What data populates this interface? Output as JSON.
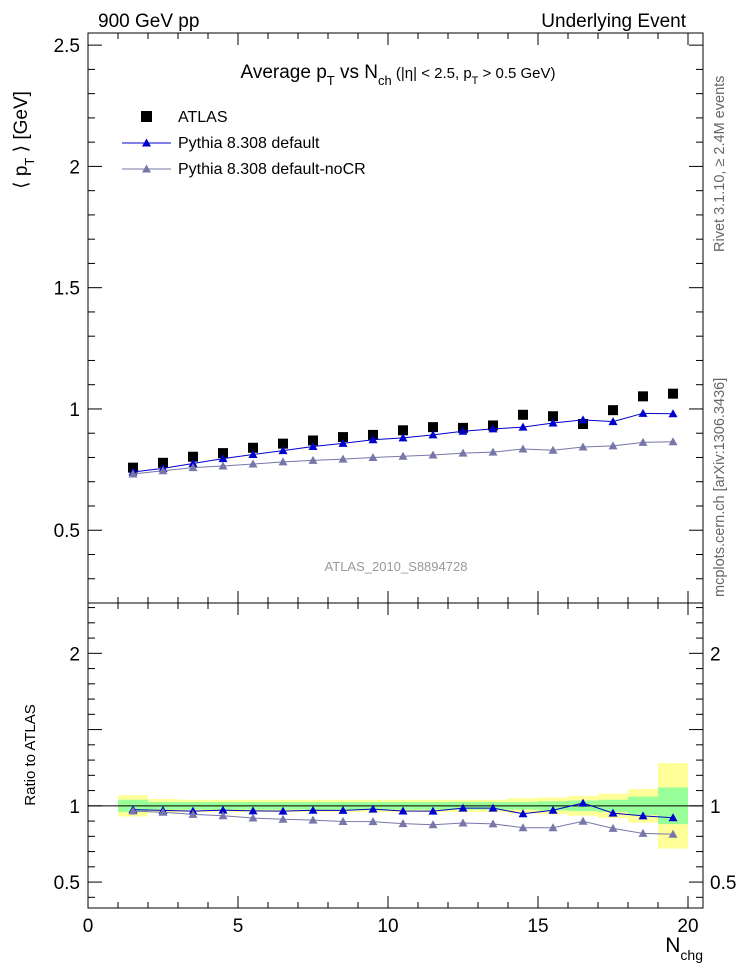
{
  "header": {
    "left": "900 GeV pp",
    "right": "Underlying Event"
  },
  "side_labels": {
    "rivet": "Rivet 3.1.10, ≥ 2.4M events",
    "mcplots": "mcplots.cern.ch [arXiv:1306.3436]"
  },
  "chart_data": [
    {
      "type": "scatter",
      "title_parts": {
        "a": "Average p",
        "a_sub": "T",
        "b": " vs N",
        "b_sub": "ch",
        "c": " (|η| < 2.5, p",
        "c_sub": "T",
        "d": " > 0.5 GeV)"
      },
      "ylabel": "⟨ p_T ⟩ [GeV]",
      "ylabel_parts": {
        "a": "⟨ p",
        "sub": "T",
        "b": " ⟩ [GeV]"
      },
      "watermark": "ATLAS_2010_S8894728",
      "xlim": [
        0,
        20.5
      ],
      "ylim": [
        0.2,
        2.55
      ],
      "yticks": [
        {
          "v": 0.5,
          "label": "0.5"
        },
        {
          "v": 1,
          "label": "1"
        },
        {
          "v": 1.5,
          "label": "1.5"
        },
        {
          "v": 2,
          "label": "2"
        },
        {
          "v": 2.5,
          "label": "2.5"
        }
      ],
      "x": [
        1.5,
        2.5,
        3.5,
        4.5,
        5.5,
        6.5,
        7.5,
        8.5,
        9.5,
        10.5,
        11.5,
        12.5,
        13.5,
        14.5,
        15.5,
        16.5,
        17.5,
        18.5,
        19.5
      ],
      "series": [
        {
          "name": "ATLAS",
          "marker": "square",
          "color": "#000000",
          "values": [
            0.758,
            0.778,
            0.803,
            0.818,
            0.84,
            0.857,
            0.87,
            0.884,
            0.893,
            0.912,
            0.925,
            0.922,
            0.932,
            0.976,
            0.97,
            0.938,
            0.995,
            1.052,
            1.063
          ]
        },
        {
          "name": "Pythia 8.308 default",
          "marker": "triangle",
          "color": "#0000cc",
          "values": [
            0.74,
            0.755,
            0.775,
            0.795,
            0.812,
            0.828,
            0.845,
            0.858,
            0.873,
            0.881,
            0.893,
            0.908,
            0.918,
            0.925,
            0.942,
            0.955,
            0.948,
            0.982,
            0.98
          ]
        },
        {
          "name": "Pythia 8.308 default-noCR",
          "marker": "triangle",
          "color": "#7777aa",
          "values": [
            0.732,
            0.745,
            0.758,
            0.765,
            0.773,
            0.782,
            0.788,
            0.793,
            0.8,
            0.805,
            0.81,
            0.818,
            0.822,
            0.835,
            0.83,
            0.843,
            0.848,
            0.862,
            0.865
          ]
        }
      ]
    },
    {
      "type": "scatter",
      "ylabel": "Ratio to ATLAS",
      "xlabel": "N_chg",
      "xlabel_parts": {
        "a": "N",
        "sub": "chg"
      },
      "xlim": [
        0,
        20.5
      ],
      "ylim": [
        0.33,
        2.33
      ],
      "xticks": [
        {
          "v": 0,
          "label": "0"
        },
        {
          "v": 5,
          "label": "5"
        },
        {
          "v": 10,
          "label": "10"
        },
        {
          "v": 15,
          "label": "15"
        },
        {
          "v": 20,
          "label": "20"
        }
      ],
      "yticks": [
        {
          "v": 0.5,
          "label": "0.5"
        },
        {
          "v": 1,
          "label": "1"
        },
        {
          "v": 2,
          "label": "2"
        }
      ],
      "bands": {
        "bin_edges": [
          1,
          2,
          3,
          4,
          5,
          6,
          7,
          8,
          9,
          10,
          11,
          12,
          13,
          14,
          15,
          16,
          17,
          18,
          19,
          20
        ],
        "green_halfwidth": [
          0.04,
          0.025,
          0.025,
          0.025,
          0.025,
          0.025,
          0.025,
          0.025,
          0.025,
          0.025,
          0.025,
          0.025,
          0.025,
          0.025,
          0.03,
          0.035,
          0.04,
          0.06,
          0.12
        ],
        "yellow_halfwidth": [
          0.07,
          0.045,
          0.04,
          0.04,
          0.04,
          0.04,
          0.04,
          0.04,
          0.04,
          0.04,
          0.04,
          0.04,
          0.04,
          0.05,
          0.055,
          0.065,
          0.08,
          0.11,
          0.28
        ],
        "green_color": "#99ff99",
        "yellow_color": "#ffff99"
      },
      "series": [
        {
          "name": "Pythia 8.308 default",
          "color": "#0000cc",
          "values": [
            0.975,
            0.97,
            0.965,
            0.972,
            0.967,
            0.965,
            0.971,
            0.97,
            0.978,
            0.966,
            0.965,
            0.985,
            0.985,
            0.948,
            0.971,
            1.018,
            0.952,
            0.934,
            0.922
          ]
        },
        {
          "name": "Pythia 8.308 default-noCR",
          "color": "#7777aa",
          "values": [
            0.966,
            0.958,
            0.944,
            0.935,
            0.92,
            0.912,
            0.906,
            0.897,
            0.896,
            0.883,
            0.876,
            0.887,
            0.882,
            0.856,
            0.856,
            0.899,
            0.852,
            0.819,
            0.814
          ]
        }
      ]
    }
  ]
}
